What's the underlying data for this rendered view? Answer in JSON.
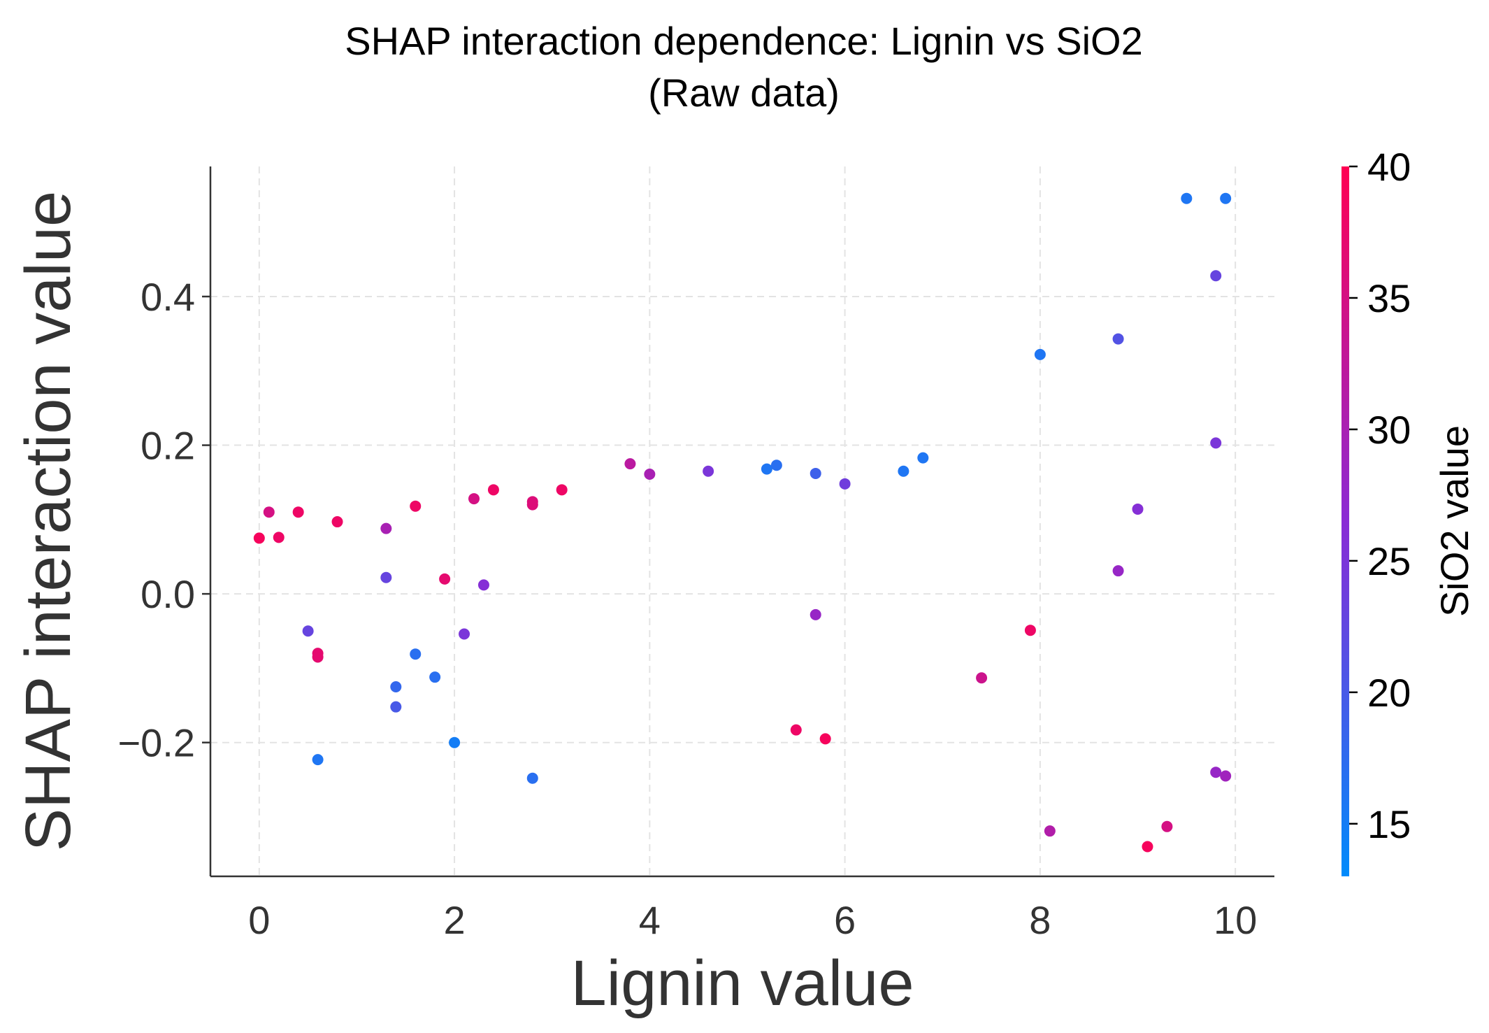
{
  "chart_data": {
    "type": "scatter",
    "title": "SHAP interaction dependence: Lignin vs SiO2",
    "subtitle": "(Raw data)",
    "xlabel": "Lignin value",
    "ylabel": "SHAP interaction value",
    "xlim": [
      -0.5,
      10.4
    ],
    "ylim": [
      -0.38,
      0.575
    ],
    "xticks": [
      0,
      2,
      4,
      6,
      8,
      10
    ],
    "xtick_labels": [
      "0",
      "2",
      "4",
      "6",
      "8",
      "10"
    ],
    "yticks": [
      -0.2,
      0.0,
      0.2,
      0.4
    ],
    "ytick_labels": [
      "−0.2",
      "0.0",
      "0.2",
      "0.4"
    ],
    "grid": true,
    "colorbar": {
      "label": "SiO2 value",
      "range": [
        13,
        40
      ],
      "ticks": [
        15,
        20,
        25,
        30,
        35,
        40
      ],
      "tick_labels": [
        "15",
        "20",
        "25",
        "30",
        "35",
        "40"
      ],
      "color_low": "#008bfb",
      "color_mid": "#8a2bd5",
      "color_high": "#ff0052"
    },
    "points": [
      {
        "x": 0.0,
        "y": 0.075,
        "c": 39
      },
      {
        "x": 0.1,
        "y": 0.11,
        "c": 35
      },
      {
        "x": 0.2,
        "y": 0.076,
        "c": 38
      },
      {
        "x": 0.4,
        "y": 0.11,
        "c": 38
      },
      {
        "x": 0.5,
        "y": -0.05,
        "c": 23
      },
      {
        "x": 0.6,
        "y": -0.08,
        "c": 37
      },
      {
        "x": 0.6,
        "y": -0.085,
        "c": 37
      },
      {
        "x": 0.6,
        "y": -0.223,
        "c": 16
      },
      {
        "x": 0.8,
        "y": 0.097,
        "c": 38
      },
      {
        "x": 1.3,
        "y": 0.088,
        "c": 30
      },
      {
        "x": 1.3,
        "y": 0.022,
        "c": 23
      },
      {
        "x": 1.4,
        "y": -0.125,
        "c": 18
      },
      {
        "x": 1.4,
        "y": -0.152,
        "c": 20
      },
      {
        "x": 1.6,
        "y": 0.118,
        "c": 38
      },
      {
        "x": 1.6,
        "y": -0.081,
        "c": 17
      },
      {
        "x": 1.8,
        "y": -0.112,
        "c": 17
      },
      {
        "x": 1.9,
        "y": 0.02,
        "c": 37
      },
      {
        "x": 2.0,
        "y": -0.2,
        "c": 15
      },
      {
        "x": 2.1,
        "y": -0.054,
        "c": 25
      },
      {
        "x": 2.2,
        "y": 0.128,
        "c": 35
      },
      {
        "x": 2.3,
        "y": 0.012,
        "c": 26
      },
      {
        "x": 2.4,
        "y": 0.14,
        "c": 38
      },
      {
        "x": 2.8,
        "y": 0.124,
        "c": 36
      },
      {
        "x": 2.8,
        "y": 0.12,
        "c": 36
      },
      {
        "x": 2.8,
        "y": -0.248,
        "c": 17
      },
      {
        "x": 3.1,
        "y": 0.14,
        "c": 38
      },
      {
        "x": 3.8,
        "y": 0.175,
        "c": 32
      },
      {
        "x": 4.0,
        "y": 0.161,
        "c": 30
      },
      {
        "x": 4.6,
        "y": 0.165,
        "c": 25
      },
      {
        "x": 5.2,
        "y": 0.168,
        "c": 16
      },
      {
        "x": 5.3,
        "y": 0.173,
        "c": 17
      },
      {
        "x": 5.5,
        "y": -0.183,
        "c": 38
      },
      {
        "x": 5.7,
        "y": 0.162,
        "c": 19
      },
      {
        "x": 5.7,
        "y": -0.028,
        "c": 28
      },
      {
        "x": 5.8,
        "y": -0.195,
        "c": 39
      },
      {
        "x": 6.0,
        "y": 0.148,
        "c": 24
      },
      {
        "x": 6.6,
        "y": 0.165,
        "c": 16
      },
      {
        "x": 6.8,
        "y": 0.183,
        "c": 16
      },
      {
        "x": 7.4,
        "y": -0.113,
        "c": 34
      },
      {
        "x": 7.9,
        "y": -0.049,
        "c": 38
      },
      {
        "x": 8.0,
        "y": 0.322,
        "c": 16
      },
      {
        "x": 8.1,
        "y": -0.319,
        "c": 31
      },
      {
        "x": 8.8,
        "y": 0.343,
        "c": 21
      },
      {
        "x": 8.8,
        "y": 0.031,
        "c": 28
      },
      {
        "x": 9.0,
        "y": 0.114,
        "c": 26
      },
      {
        "x": 9.1,
        "y": -0.34,
        "c": 39
      },
      {
        "x": 9.3,
        "y": -0.313,
        "c": 35
      },
      {
        "x": 9.5,
        "y": 0.532,
        "c": 16
      },
      {
        "x": 9.8,
        "y": 0.428,
        "c": 23
      },
      {
        "x": 9.8,
        "y": 0.203,
        "c": 25
      },
      {
        "x": 9.8,
        "y": -0.24,
        "c": 28
      },
      {
        "x": 9.9,
        "y": 0.532,
        "c": 16
      },
      {
        "x": 9.9,
        "y": -0.245,
        "c": 29
      }
    ]
  }
}
